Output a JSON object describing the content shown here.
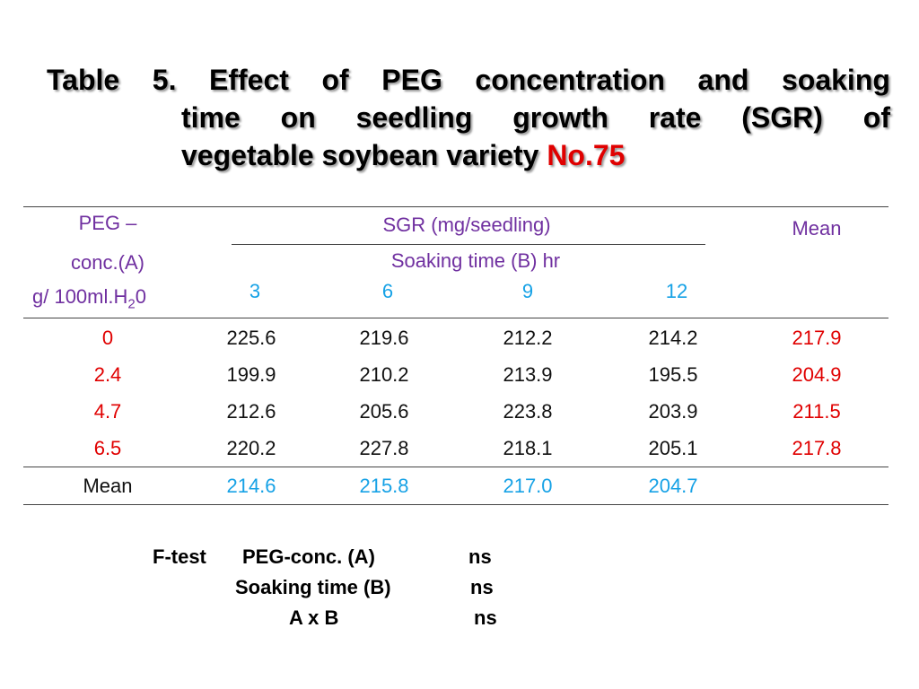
{
  "title": {
    "line1": [
      "Table",
      "5.",
      "Effect",
      "of",
      "PEG",
      "concentration",
      "and",
      "soaking"
    ],
    "line2": [
      "time",
      "on",
      "seedling",
      "growth",
      "rate",
      "(SGR)",
      "of"
    ],
    "line3_text": "vegetable soybean variety ",
    "line3_highlight": "No.75"
  },
  "table": {
    "header": {
      "peg_line1": "PEG –",
      "peg_line2": "conc.(A)",
      "peg_line3_pre": "g/ 100ml.H",
      "peg_line3_sub": "2",
      "peg_line3_post": "0",
      "sgr": "SGR (mg/seedling)",
      "soaking": "Soaking time (B) hr",
      "mean": "Mean",
      "times": [
        "3",
        "6",
        "9",
        "12"
      ]
    },
    "rows": [
      {
        "conc": "0",
        "values": [
          "225.6",
          "219.6",
          "212.2",
          "214.2"
        ],
        "mean": "217.9"
      },
      {
        "conc": "2.4",
        "values": [
          "199.9",
          "210.2",
          "213.9",
          "195.5"
        ],
        "mean": "204.9"
      },
      {
        "conc": "4.7",
        "values": [
          "212.6",
          "205.6",
          "223.8",
          "203.9"
        ],
        "mean": "211.5"
      },
      {
        "conc": "6.5",
        "values": [
          "220.2",
          "227.8",
          "218.1",
          "205.1"
        ],
        "mean": "217.8"
      }
    ],
    "mean_row": {
      "label": "Mean",
      "values": [
        "214.6",
        "215.8",
        "217.0",
        "204.7"
      ]
    }
  },
  "ftest": {
    "label": "F-test",
    "items": [
      {
        "name": "PEG-conc. (A)",
        "result": "ns"
      },
      {
        "name": "Soaking time (B)",
        "result": "ns"
      },
      {
        "name": "A x B",
        "result": "ns"
      }
    ]
  },
  "colors": {
    "header": "#7030a0",
    "soaking_times": "#17a2e6",
    "highlight": "#e00000"
  }
}
